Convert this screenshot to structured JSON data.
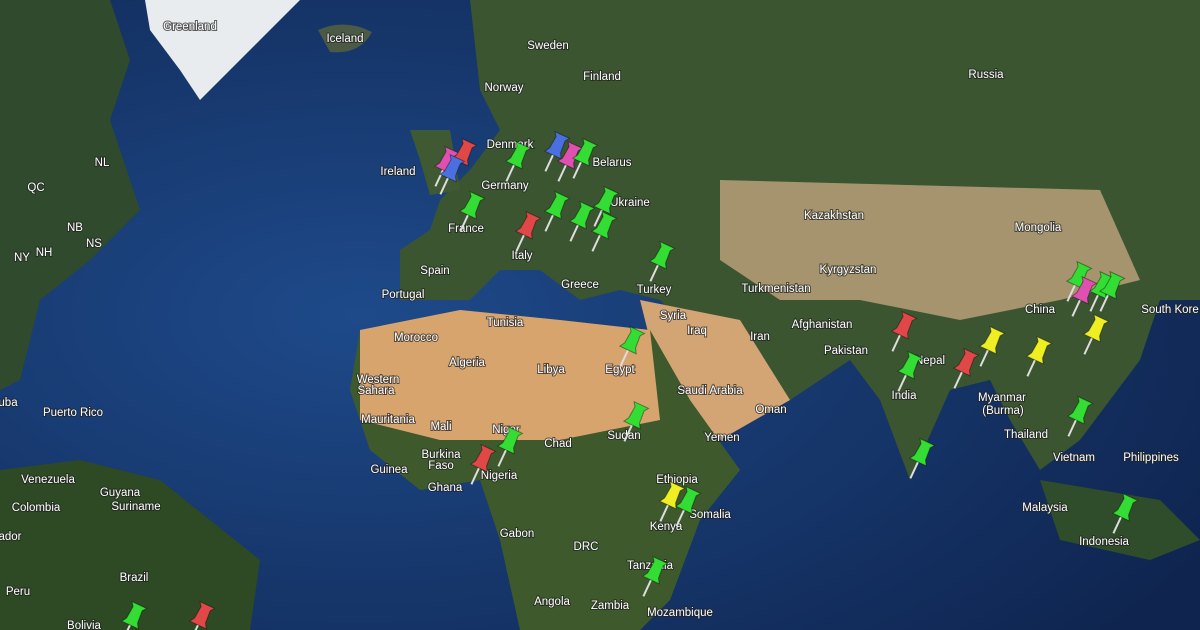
{
  "map": {
    "labels": [
      "Greenland",
      "Iceland",
      "Sweden",
      "Finland",
      "Norway",
      "Russia",
      "Denmark",
      "Ireland",
      "Germany",
      "Belarus",
      "Ukraine",
      "Kazakhstan",
      "Mongolia",
      "France",
      "Italy",
      "Spain",
      "Portugal",
      "Greece",
      "Turkey",
      "Kyrgyzstan",
      "Turkmenistan",
      "China",
      "South Kore",
      "Tunisia",
      "Syria",
      "Iraq",
      "Iran",
      "Afghanistan",
      "Pakistan",
      "Nepal",
      "Morocco",
      "Algeria",
      "Libya",
      "Egypt",
      "Western",
      "Sahara",
      "Saudi Arabia",
      "Oman",
      "India",
      "Myanmar",
      "(Burma)",
      "Mauritania",
      "Mali",
      "Niger",
      "Chad",
      "Sudan",
      "Yemen",
      "Thailand",
      "Philippines",
      "Vietnam",
      "Burkina",
      "Faso",
      "Nigeria",
      "Guinea",
      "Ghana",
      "Ethiopia",
      "Somalia",
      "Kenya",
      "Malaysia",
      "Indonesia",
      "Venezuela",
      "Guyana",
      "Suriname",
      "Colombia",
      "Gabon",
      "DRC",
      "Tanzania",
      "Brazil",
      "Angola",
      "Zambia",
      "Mozambique",
      "Bolivia",
      "Puerto Rico",
      "uba",
      "ador",
      "Peru",
      "NL",
      "QC",
      "NB",
      "NS",
      "NH",
      "NY"
    ]
  }
}
